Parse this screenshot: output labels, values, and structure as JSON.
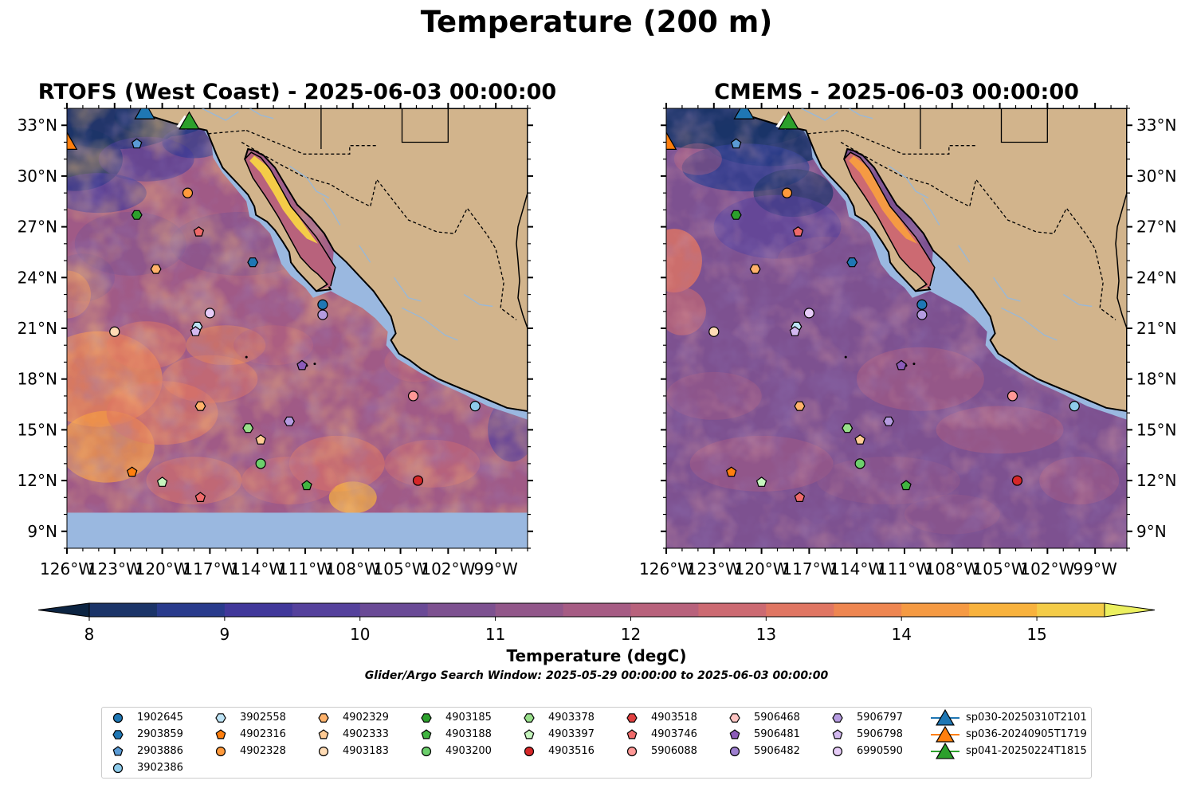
{
  "title": "Temperature (200 m)",
  "panels": [
    {
      "title": "RTOFS (West Coast) - 2025-06-03 00:00:00",
      "model": "rtofs"
    },
    {
      "title": "CMEMS - 2025-06-03 00:00:00",
      "model": "cmems"
    }
  ],
  "map": {
    "lon_range": [
      -126,
      -97
    ],
    "lat_range": [
      8,
      34
    ],
    "lon_ticks": [
      "126°W",
      "123°W",
      "120°W",
      "117°W",
      "114°W",
      "111°W",
      "108°W",
      "105°W",
      "102°W",
      "99°W"
    ],
    "lat_ticks": [
      "9°N",
      "12°N",
      "15°N",
      "18°N",
      "21°N",
      "24°N",
      "27°N",
      "30°N",
      "33°N"
    ],
    "land_color": "#D2B48C",
    "shelf_color": "#9AB8E0",
    "rtofs_no_data_below_lat": 10.1
  },
  "colorbar": {
    "label": "Temperature (degC)",
    "ticks": [
      "8",
      "9",
      "10",
      "11",
      "12",
      "13",
      "14",
      "15"
    ],
    "min": 7.5,
    "max": 15.5,
    "step": 0.5,
    "colors": [
      "#0c2442",
      "#1b3468",
      "#293b8c",
      "#41389a",
      "#55419c",
      "#6a4a96",
      "#7d5190",
      "#92578a",
      "#a65c84",
      "#b8627c",
      "#cc6a72",
      "#e07663",
      "#ee8651",
      "#f59a43",
      "#f8b23d",
      "#f4cc48",
      "#ecf060"
    ]
  },
  "subtitle": "Glider/Argo Search Window: 2025-05-29 00:00:00 to 2025-06-03 00:00:00",
  "legend": [
    {
      "label": "1902645",
      "color": "#1f77b4",
      "marker": "circle"
    },
    {
      "label": "2903859",
      "color": "#1f77b4",
      "marker": "hexagon"
    },
    {
      "label": "2903886",
      "color": "#5b9bd5",
      "marker": "pentagon"
    },
    {
      "label": "3902386",
      "color": "#8ecbea",
      "marker": "circle"
    },
    {
      "label": "3902558",
      "color": "#bde3f5",
      "marker": "hexagon"
    },
    {
      "label": "4902316",
      "color": "#ff7f0e",
      "marker": "pentagon"
    },
    {
      "label": "4902328",
      "color": "#ff9a3c",
      "marker": "circle"
    },
    {
      "label": "4902329",
      "color": "#ffb26b",
      "marker": "hexagon"
    },
    {
      "label": "4902333",
      "color": "#ffcb94",
      "marker": "pentagon"
    },
    {
      "label": "4903183",
      "color": "#ffdcb5",
      "marker": "circle"
    },
    {
      "label": "4903185",
      "color": "#2ca02c",
      "marker": "hexagon"
    },
    {
      "label": "4903188",
      "color": "#41b541",
      "marker": "pentagon"
    },
    {
      "label": "4903200",
      "color": "#6ccf6c",
      "marker": "circle"
    },
    {
      "label": "4903378",
      "color": "#98df8a",
      "marker": "hexagon"
    },
    {
      "label": "4903397",
      "color": "#c5f5bd",
      "marker": "pentagon"
    },
    {
      "label": "4903516",
      "color": "#d62728",
      "marker": "circle"
    },
    {
      "label": "4903518",
      "color": "#e04040",
      "marker": "hexagon"
    },
    {
      "label": "4903746",
      "color": "#ef6a6a",
      "marker": "pentagon"
    },
    {
      "label": "5906088",
      "color": "#ff9896",
      "marker": "circle"
    },
    {
      "label": "5906468",
      "color": "#ffc4c2",
      "marker": "hexagon"
    },
    {
      "label": "5906481",
      "color": "#8c5bb8",
      "marker": "pentagon"
    },
    {
      "label": "5906482",
      "color": "#9e7fd0",
      "marker": "circle"
    },
    {
      "label": "5906797",
      "color": "#b59be0",
      "marker": "hexagon"
    },
    {
      "label": "5906798",
      "color": "#d3b9f0",
      "marker": "pentagon"
    },
    {
      "label": "6990590",
      "color": "#e6ccf7",
      "marker": "circle"
    },
    {
      "label": "sp030-20250310T2101",
      "color": "#1f77b4",
      "marker": "triangle"
    },
    {
      "label": "sp036-20240905T1719",
      "color": "#ff7f0e",
      "marker": "triangle"
    },
    {
      "label": "sp041-20250224T1815",
      "color": "#2ca02c",
      "marker": "triangle"
    }
  ],
  "platforms": [
    {
      "lon": -123.0,
      "lat": 20.8,
      "color": "#ffdcb5",
      "marker": "circle"
    },
    {
      "lon": -118.4,
      "lat": 29.0,
      "color": "#ff9a3c",
      "marker": "circle"
    },
    {
      "lon": -121.6,
      "lat": 27.7,
      "color": "#2ca02c",
      "marker": "hexagon"
    },
    {
      "lon": -121.6,
      "lat": 31.9,
      "color": "#5b9bd5",
      "marker": "pentagon"
    },
    {
      "lon": -117.7,
      "lat": 26.7,
      "color": "#ef6a6a",
      "marker": "pentagon"
    },
    {
      "lon": -120.4,
      "lat": 24.5,
      "color": "#ffb26b",
      "marker": "hexagon"
    },
    {
      "lon": -114.3,
      "lat": 24.9,
      "color": "#1f77b4",
      "marker": "hexagon"
    },
    {
      "lon": -109.9,
      "lat": 22.4,
      "color": "#1f77b4",
      "marker": "circle"
    },
    {
      "lon": -109.9,
      "lat": 21.8,
      "color": "#b59be0",
      "marker": "circle"
    },
    {
      "lon": -117.0,
      "lat": 21.9,
      "color": "#e6ccf7",
      "marker": "circle"
    },
    {
      "lon": -117.8,
      "lat": 21.1,
      "color": "#bde3f5",
      "marker": "hexagon"
    },
    {
      "lon": -117.9,
      "lat": 20.8,
      "color": "#d3b9f0",
      "marker": "pentagon"
    },
    {
      "lon": -111.2,
      "lat": 18.8,
      "color": "#8c5bb8",
      "marker": "pentagon"
    },
    {
      "lon": -117.6,
      "lat": 16.4,
      "color": "#ffb26b",
      "marker": "hexagon"
    },
    {
      "lon": -114.6,
      "lat": 15.1,
      "color": "#98df8a",
      "marker": "hexagon"
    },
    {
      "lon": -112.0,
      "lat": 15.5,
      "color": "#b59be0",
      "marker": "hexagon"
    },
    {
      "lon": -113.8,
      "lat": 14.4,
      "color": "#ffcb94",
      "marker": "pentagon"
    },
    {
      "lon": -113.8,
      "lat": 13.0,
      "color": "#6ccf6c",
      "marker": "circle"
    },
    {
      "lon": -121.9,
      "lat": 12.5,
      "color": "#ff7f0e",
      "marker": "pentagon"
    },
    {
      "lon": -120.0,
      "lat": 11.9,
      "color": "#c5f5bd",
      "marker": "pentagon"
    },
    {
      "lon": -117.6,
      "lat": 11.0,
      "color": "#ef6a6a",
      "marker": "pentagon"
    },
    {
      "lon": -110.9,
      "lat": 11.7,
      "color": "#41b541",
      "marker": "pentagon"
    },
    {
      "lon": -103.9,
      "lat": 12.0,
      "color": "#d62728",
      "marker": "circle"
    },
    {
      "lon": -104.2,
      "lat": 17.0,
      "color": "#ff9896",
      "marker": "circle"
    },
    {
      "lon": -100.3,
      "lat": 16.4,
      "color": "#8ecbea",
      "marker": "circle"
    },
    {
      "lon": -121.1,
      "lat": 33.8,
      "color": "#1f77b4",
      "marker": "triangle"
    },
    {
      "lon": -126.0,
      "lat": 32.0,
      "color": "#ff7f0e",
      "marker": "triangle"
    },
    {
      "lon": -118.3,
      "lat": 33.2,
      "color": "#2ca02c",
      "marker": "triangle"
    }
  ]
}
